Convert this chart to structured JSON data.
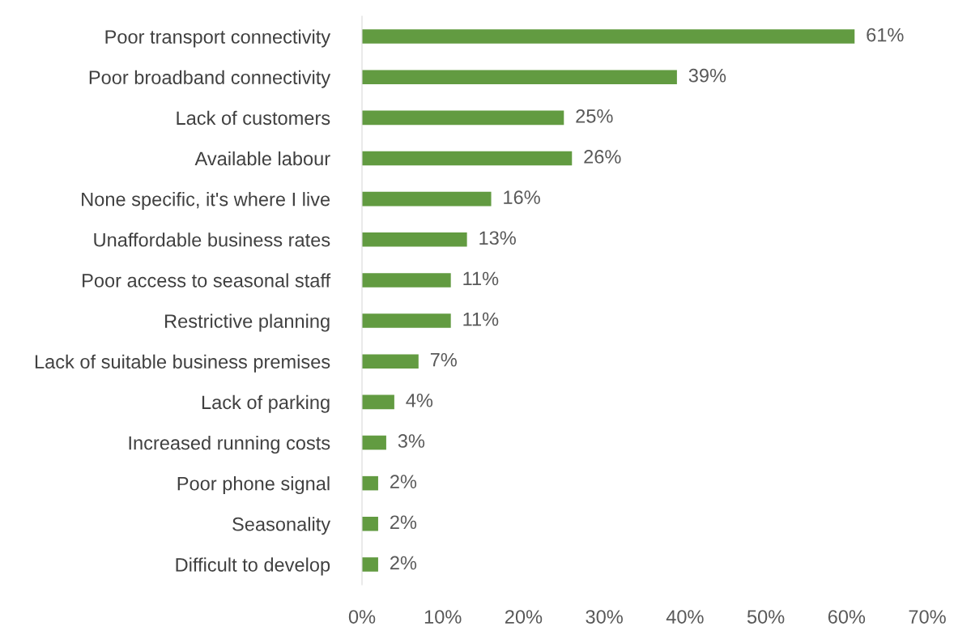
{
  "chart_data": {
    "type": "bar",
    "orientation": "horizontal",
    "categories": [
      "Poor transport connectivity",
      "Poor broadband connectivity",
      "Lack of customers",
      "Available labour",
      "None specific, it's where I live",
      "Unaffordable business rates",
      "Poor access to seasonal staff",
      "Restrictive planning",
      "Lack of suitable business premises",
      "Lack of parking",
      "Increased running costs",
      "Poor phone signal",
      "Seasonality",
      "Difficult to develop"
    ],
    "values": [
      61,
      39,
      25,
      26,
      16,
      13,
      11,
      11,
      7,
      4,
      3,
      2,
      2,
      2
    ],
    "value_labels": [
      "61%",
      "39%",
      "25%",
      "26%",
      "16%",
      "13%",
      "11%",
      "11%",
      "7%",
      "4%",
      "3%",
      "2%",
      "2%",
      "2%"
    ],
    "color": "#629b41",
    "xlim": [
      0,
      70
    ],
    "xticks": [
      {
        "value": 0,
        "label": "0%"
      },
      {
        "value": 10,
        "label": "10%"
      },
      {
        "value": 20,
        "label": "20%"
      },
      {
        "value": 30,
        "label": "30%"
      },
      {
        "value": 40,
        "label": "40%"
      },
      {
        "value": 50,
        "label": "50%"
      },
      {
        "value": 60,
        "label": "60%"
      },
      {
        "value": 70,
        "label": "70%"
      }
    ],
    "grid": false,
    "legend": false
  }
}
